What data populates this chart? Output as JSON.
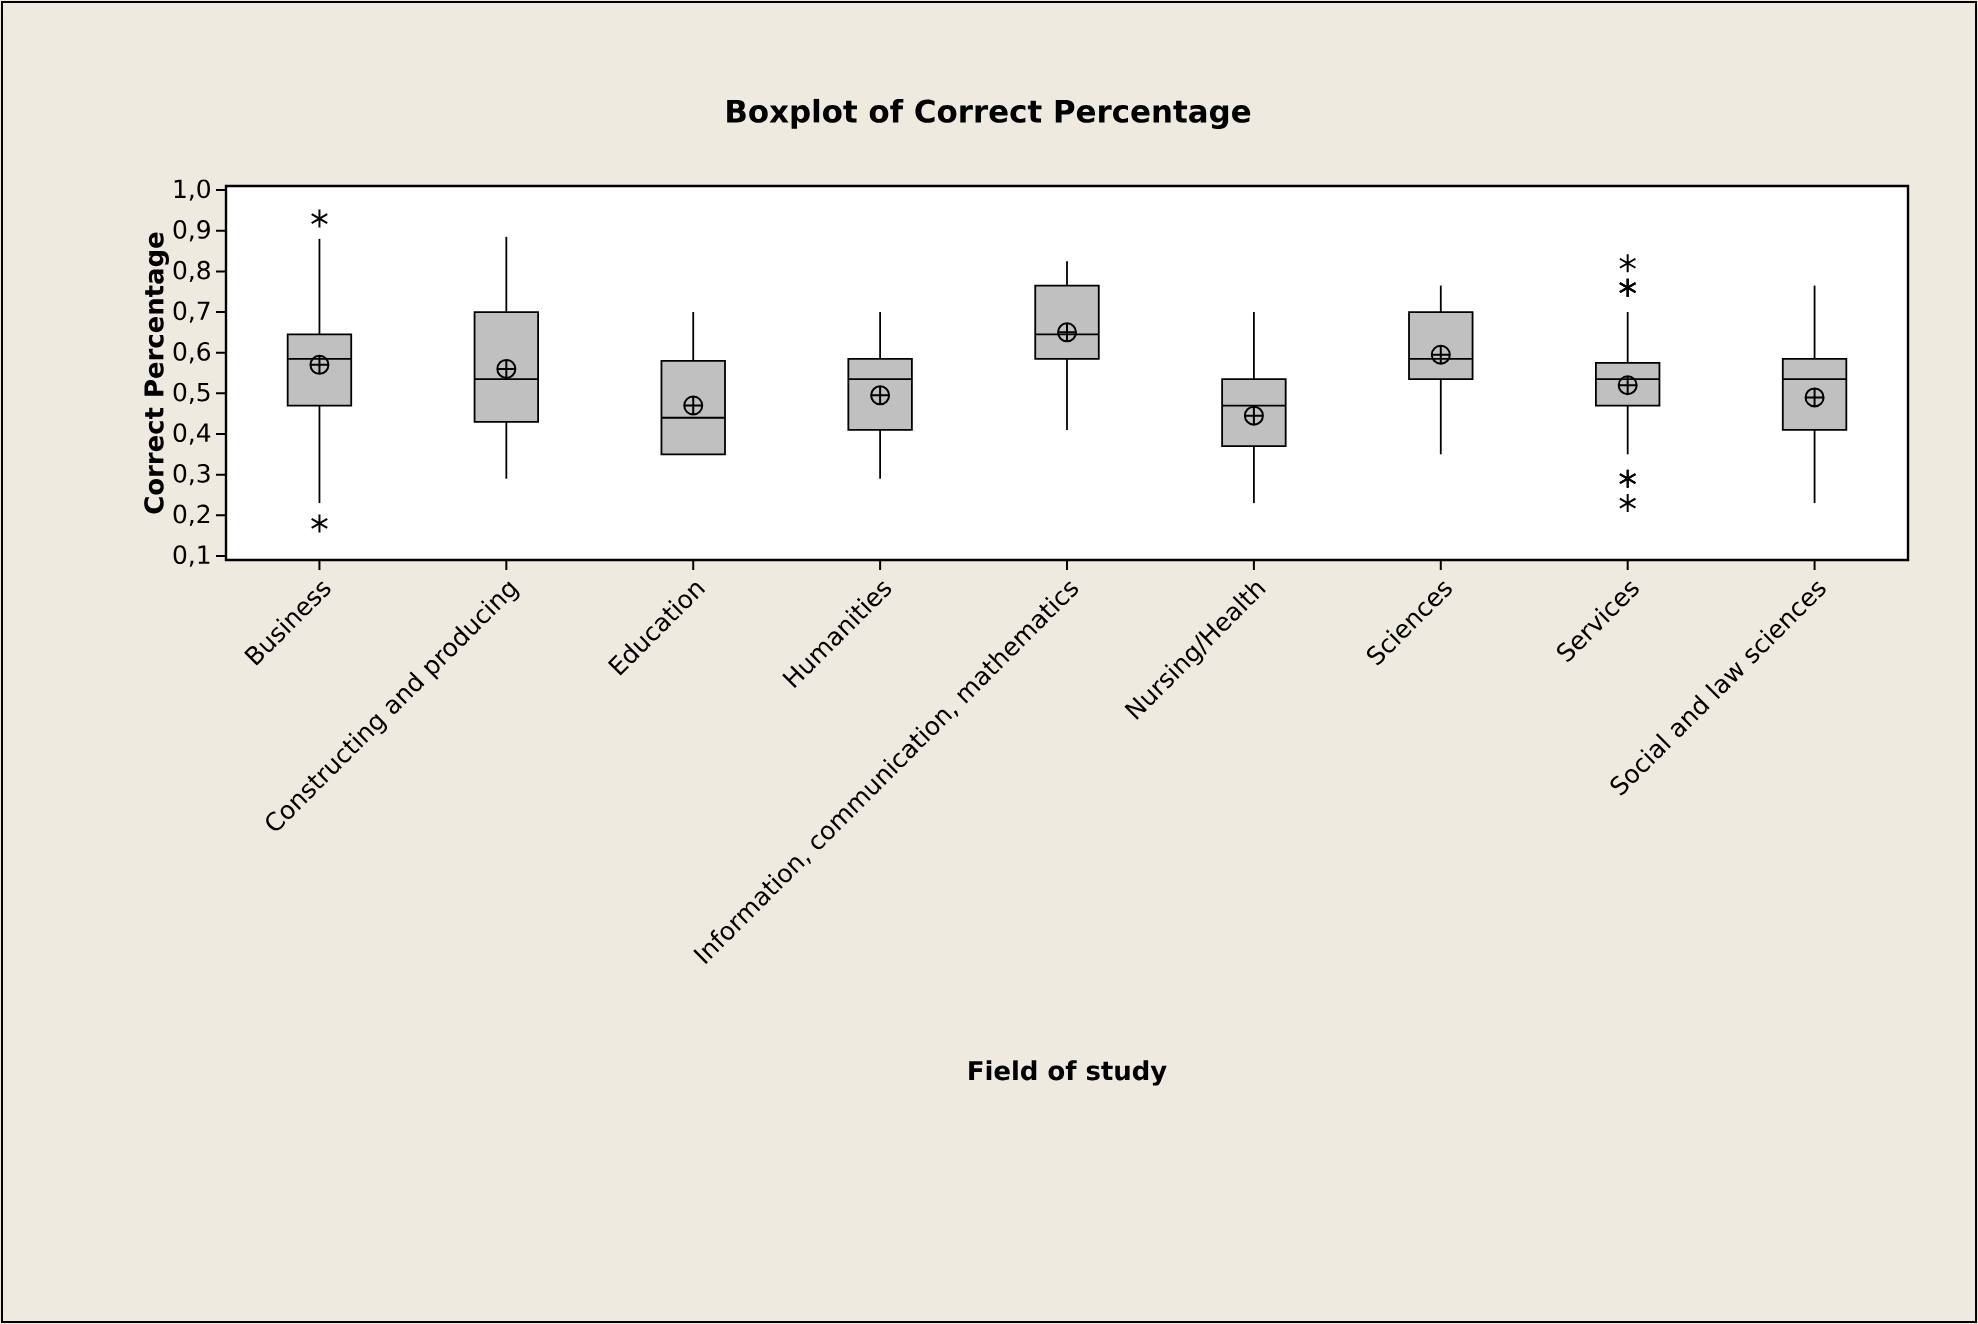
{
  "chart_data": {
    "type": "box",
    "title": "Boxplot of Correct Percentage",
    "xlabel": "Field of study",
    "ylabel": "Correct Percentage",
    "categories": [
      "Business",
      "Constructing and producing",
      "Education",
      "Humanities",
      "Information, communication, mathematics",
      "Nursing/Health",
      "Sciences",
      "Services",
      "Social and law sciences"
    ],
    "color": "#c0c0c0",
    "boxes": [
      {
        "low": 0.23,
        "q1": 0.47,
        "median": 0.585,
        "q3": 0.645,
        "high": 0.88,
        "mean": 0.57,
        "outliers": [
          0.93,
          0.18
        ]
      },
      {
        "low": 0.29,
        "q1": 0.43,
        "median": 0.535,
        "q3": 0.7,
        "high": 0.885,
        "mean": 0.56
      },
      {
        "low": 0.35,
        "q1": 0.35,
        "median": 0.44,
        "q3": 0.58,
        "high": 0.7,
        "mean": 0.47
      },
      {
        "low": 0.29,
        "q1": 0.41,
        "median": 0.535,
        "q3": 0.585,
        "high": 0.7,
        "mean": 0.495
      },
      {
        "low": 0.41,
        "q1": 0.585,
        "median": 0.645,
        "q3": 0.765,
        "high": 0.825,
        "mean": 0.65
      },
      {
        "low": 0.23,
        "q1": 0.37,
        "median": 0.47,
        "q3": 0.535,
        "high": 0.7,
        "mean": 0.445
      },
      {
        "low": 0.35,
        "q1": 0.535,
        "median": 0.585,
        "q3": 0.7,
        "high": 0.765,
        "mean": 0.595
      },
      {
        "low": 0.35,
        "q1": 0.47,
        "median": 0.535,
        "q3": 0.575,
        "high": 0.7,
        "mean": 0.52,
        "outliers": [
          0.82,
          0.76,
          0.76,
          0.76,
          0.29,
          0.29,
          0.23
        ]
      },
      {
        "low": 0.23,
        "q1": 0.41,
        "median": 0.535,
        "q3": 0.585,
        "high": 0.765,
        "mean": 0.49
      }
    ],
    "ylim": [
      0.09,
      1.01
    ],
    "yticks": [
      {
        "value": 0.1,
        "label": "0,1"
      },
      {
        "value": 0.2,
        "label": "0,2"
      },
      {
        "value": 0.3,
        "label": "0,3"
      },
      {
        "value": 0.4,
        "label": "0,4"
      },
      {
        "value": 0.5,
        "label": "0,5"
      },
      {
        "value": 0.6,
        "label": "0,6"
      },
      {
        "value": 0.7,
        "label": "0,7"
      },
      {
        "value": 0.8,
        "label": "0,8"
      },
      {
        "value": 0.9,
        "label": "0,9"
      },
      {
        "value": 1.0,
        "label": "1,0"
      }
    ]
  }
}
